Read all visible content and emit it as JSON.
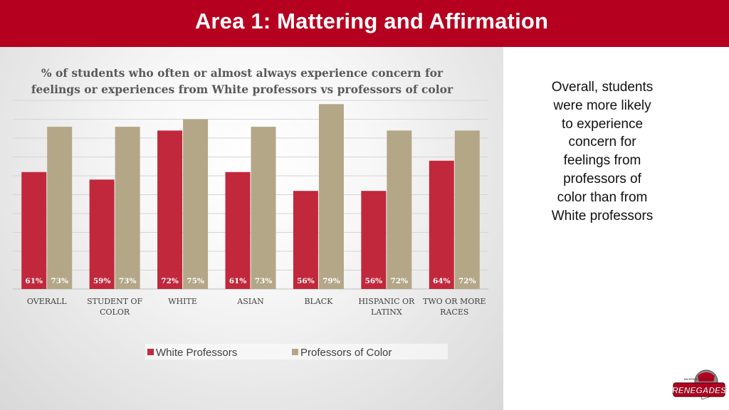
{
  "header": {
    "title": "Area 1: Mattering and Affirmation"
  },
  "side_text": "Overall, students were more likely to experience concern for feelings from professors of color than from White professors",
  "logo": {
    "text": "RENEGADES",
    "subtext": "BAKERSFIELD COLLEGE"
  },
  "colors": {
    "header": "#b5001f",
    "white_professors": "#c1283c",
    "professors_of_color": "#b3a788"
  },
  "chart_data": {
    "type": "bar",
    "title": "% of students who often or almost always experience concern for feelings or experiences from White professors vs professors of color",
    "categories": [
      [
        "OVERALL"
      ],
      [
        "STUDENT OF",
        "COLOR"
      ],
      [
        "WHITE"
      ],
      [
        "ASIAN"
      ],
      [
        "BLACK"
      ],
      [
        "HISPANIC OR",
        "LATINX"
      ],
      [
        "TWO OR MORE",
        "RACES"
      ]
    ],
    "series": [
      {
        "name": "White Professors",
        "values": [
          61,
          59,
          72,
          61,
          56,
          56,
          64
        ],
        "labels": [
          "61%",
          "59%",
          "72%",
          "61%",
          "56%",
          "56%",
          "64%"
        ]
      },
      {
        "name": "Professors  of Color",
        "values": [
          73,
          73,
          75,
          73,
          79,
          72,
          72
        ],
        "labels": [
          "73%",
          "73%",
          "75%",
          "73%",
          "79%",
          "72%",
          "72%"
        ]
      }
    ],
    "ylim": [
      30,
      85
    ],
    "grid": true,
    "legend": "bottom",
    "xlabel": "",
    "ylabel": ""
  }
}
